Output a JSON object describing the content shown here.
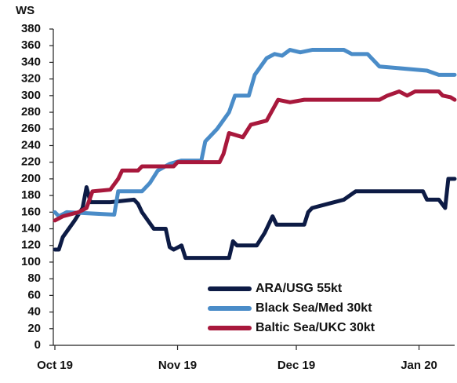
{
  "chart_data": {
    "type": "line",
    "y_label": "WS",
    "xlim": [
      0,
      101
    ],
    "xticks": [
      {
        "value": 0,
        "label": "Oct 19"
      },
      {
        "value": 31,
        "label": "Nov 19"
      },
      {
        "value": 61,
        "label": "Dec 19"
      },
      {
        "value": 92,
        "label": "Jan 20"
      }
    ],
    "ylim": [
      0,
      380
    ],
    "yticks": [
      0,
      20,
      40,
      60,
      80,
      100,
      120,
      140,
      160,
      180,
      200,
      220,
      240,
      260,
      280,
      300,
      320,
      340,
      360,
      380
    ],
    "legend": "lower right",
    "series": [
      {
        "name": "ARA/USG 55kt",
        "color": "#0d1b45",
        "x": [
          0,
          1,
          2,
          5,
          7,
          8,
          9,
          14,
          20,
          21,
          22,
          25,
          28,
          29,
          30,
          32,
          33,
          44,
          45,
          46,
          51,
          53,
          55,
          56,
          57,
          63,
          64,
          65,
          69,
          73,
          76,
          93,
          94,
          97,
          98.6,
          99.4,
          101
        ],
        "values": [
          115,
          115,
          130,
          150,
          165,
          190,
          172,
          172,
          175,
          170,
          160,
          140,
          140,
          118,
          115,
          120,
          105,
          105,
          125,
          120,
          120,
          135,
          155,
          145,
          145,
          145,
          160,
          165,
          170,
          175,
          185,
          185,
          175,
          175,
          165,
          200,
          200
        ]
      },
      {
        "name": "Black Sea/Med 30kt",
        "color": "#4a8cc8",
        "x": [
          0,
          1,
          3,
          15,
          16,
          22,
          24,
          26,
          29,
          32,
          37,
          38,
          41,
          44,
          45.5,
          49,
          50.5,
          53.5,
          55.5,
          57.4,
          59.4,
          62,
          65,
          73,
          75,
          79,
          82,
          94,
          97,
          101
        ],
        "values": [
          160,
          155,
          160,
          157,
          185,
          185,
          195,
          210,
          218,
          222,
          222,
          245,
          260,
          280,
          300,
          300,
          325,
          345,
          350,
          348,
          355,
          352,
          355,
          355,
          350,
          350,
          335,
          330,
          325,
          325
        ]
      },
      {
        "name": "Baltic Sea/UKC 30kt",
        "color": "#a8183c",
        "x": [
          0,
          2,
          6,
          8,
          9.5,
          14,
          16,
          17,
          21,
          22,
          30,
          31,
          41.6,
          42.6,
          44,
          47.5,
          49.5,
          53.5,
          56.4,
          59.4,
          63,
          82,
          84,
          87,
          89,
          91,
          97,
          98,
          100,
          101
        ],
        "values": [
          150,
          155,
          160,
          165,
          185,
          187,
          200,
          210,
          210,
          215,
          215,
          220,
          220,
          230,
          255,
          250,
          265,
          270,
          295,
          292,
          295,
          295,
          300,
          305,
          300,
          305,
          305,
          300,
          298,
          295
        ]
      }
    ]
  }
}
